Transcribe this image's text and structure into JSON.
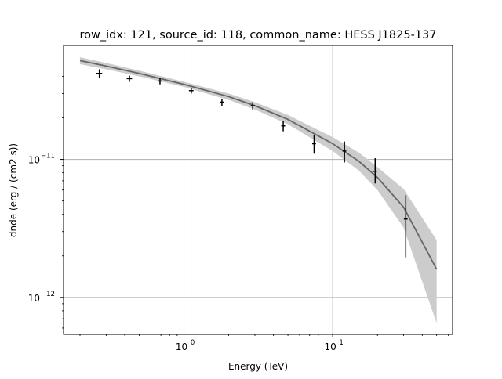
{
  "chart_data": {
    "type": "scatter",
    "title": "row_idx: 121, source_id: 118, common_name: HESS J1825-137",
    "xlabel": "Energy (TeV)",
    "ylabel": "dnde (erg / (cm2 s))",
    "xscale": "log",
    "yscale": "log",
    "xlim": [
      0.155,
      64
    ],
    "ylim": [
      5.4e-13,
      6.7e-11
    ],
    "grid": true,
    "x_ticks": [
      {
        "value": 1,
        "base": "10",
        "exp": "0"
      },
      {
        "value": 10,
        "base": "10",
        "exp": "1"
      }
    ],
    "y_ticks": [
      {
        "value": 1e-12,
        "base": "10",
        "exp": "−12"
      },
      {
        "value": 1e-11,
        "base": "10",
        "exp": "−11"
      }
    ],
    "colors": {
      "points": "#000000",
      "model": "#666666",
      "band": "#cccccc",
      "grid": "#b0b0b0"
    },
    "series": [
      {
        "kind": "flux_points",
        "x": [
          0.27,
          0.43,
          0.69,
          1.12,
          1.8,
          2.9,
          4.65,
          7.5,
          12.0,
          19.3,
          31.0
        ],
        "x_err_lo": [
          0.012,
          0.018,
          0.025,
          0.04,
          0.06,
          0.09,
          0.14,
          0.22,
          0.35,
          0.55,
          0.9
        ],
        "x_err_hi": [
          0.012,
          0.018,
          0.025,
          0.04,
          0.06,
          0.09,
          0.14,
          0.22,
          0.35,
          0.55,
          0.9
        ],
        "y": [
          4.2e-11,
          3.85e-11,
          3.7e-11,
          3.15e-11,
          2.6e-11,
          2.45e-11,
          1.75e-11,
          1.3e-11,
          1.15e-11,
          8.2e-12,
          3.7e-12
        ],
        "y_err_lo": [
          3e-12,
          2e-12,
          2e-12,
          1.5e-12,
          1.5e-12,
          1.5e-12,
          1.5e-12,
          2e-12,
          2e-12,
          1.5e-12,
          1.75e-12
        ],
        "y_err_hi": [
          3e-12,
          2e-12,
          2e-12,
          1.5e-12,
          1.5e-12,
          1.5e-12,
          1.5e-12,
          2e-12,
          2e-12,
          2e-12,
          1.8e-12
        ]
      },
      {
        "kind": "model",
        "x": [
          0.2,
          0.3,
          0.5,
          1.0,
          2.0,
          3.0,
          5.0,
          10.0,
          15.0,
          20.0,
          30.0,
          50.0
        ],
        "y": [
          5.2e-11,
          4.75e-11,
          4.2e-11,
          3.5e-11,
          2.85e-11,
          2.45e-11,
          1.95e-11,
          1.3e-11,
          9.7e-12,
          7.4e-12,
          4.5e-12,
          1.6e-12
        ],
        "band_lo": [
          4.9e-11,
          4.5e-11,
          4e-11,
          3.35e-11,
          2.7e-11,
          2.3e-11,
          1.8e-11,
          1.15e-11,
          8.3e-12,
          6e-12,
          3.2e-12,
          6.5e-13
        ],
        "band_hi": [
          5.5e-11,
          5e-11,
          4.4e-11,
          3.65e-11,
          3e-11,
          2.6e-11,
          2.1e-11,
          1.45e-11,
          1.12e-11,
          8.8e-12,
          6.1e-12,
          2.6e-12
        ]
      }
    ]
  }
}
